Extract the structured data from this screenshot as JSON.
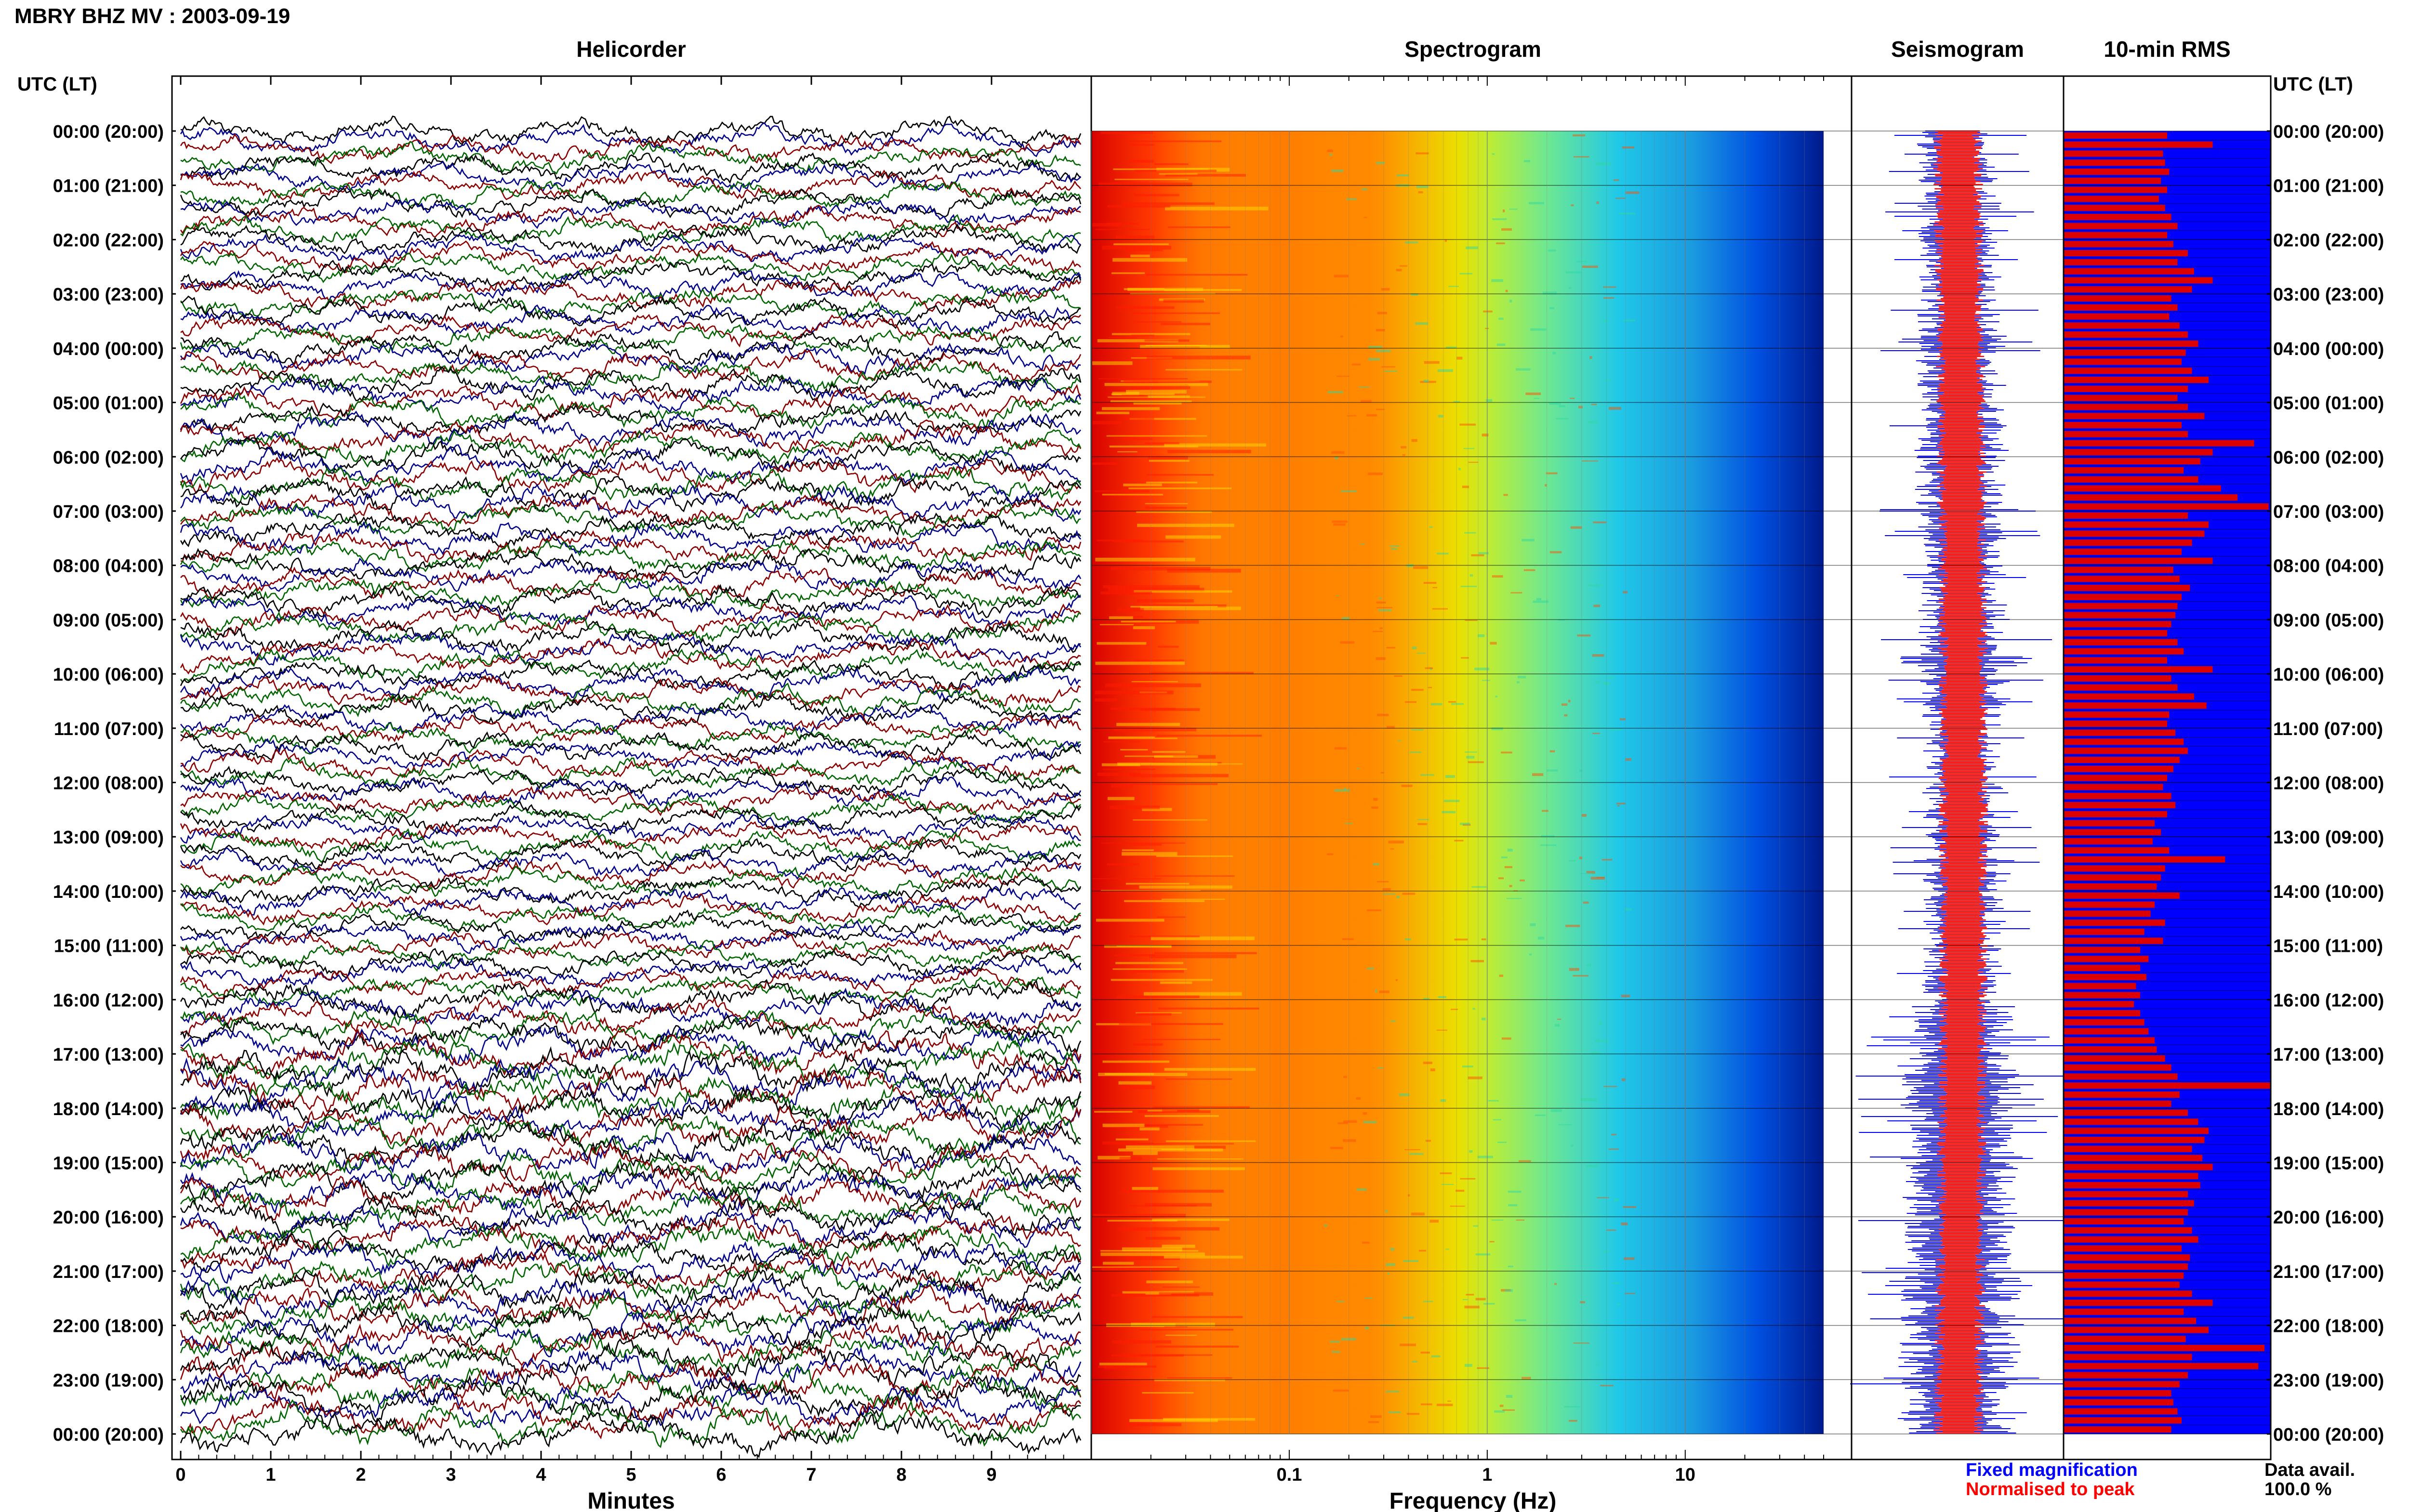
{
  "title": "MBRY BHZ MV : 2003-09-19",
  "left_axis_label": "UTC (LT)",
  "right_axis_label": "UTC (LT)",
  "panels": {
    "helicorder": "Helicorder",
    "spectrogram": "Spectrogram",
    "seismogram": "Seismogram",
    "rms": "10-min RMS"
  },
  "time_labels": [
    "00:00 (20:00)",
    "01:00 (21:00)",
    "02:00 (22:00)",
    "03:00 (23:00)",
    "04:00 (00:00)",
    "05:00 (01:00)",
    "06:00 (02:00)",
    "07:00 (03:00)",
    "08:00 (04:00)",
    "09:00 (05:00)",
    "10:00 (06:00)",
    "11:00 (07:00)",
    "12:00 (08:00)",
    "13:00 (09:00)",
    "14:00 (10:00)",
    "15:00 (11:00)",
    "16:00 (12:00)",
    "17:00 (13:00)",
    "18:00 (14:00)",
    "19:00 (15:00)",
    "20:00 (16:00)",
    "21:00 (17:00)",
    "22:00 (18:00)",
    "23:00 (19:00)",
    "00:00 (20:00)"
  ],
  "legend": {
    "fixed": "Fixed magnification",
    "normalised": "Normalised to peak",
    "avail_label": "Data avail.",
    "avail_value": "100.0 %"
  },
  "colors": {
    "helicorder_traces": [
      "#000000",
      "#00008b",
      "#8b0000",
      "#006400"
    ],
    "fixed_magnification": "#0000ff",
    "normalised_to_peak": "#ff0000",
    "rms_background": "#0000ff",
    "rms_bars": "#dd0000"
  },
  "chart_data": [
    {
      "type": "line",
      "name": "Helicorder",
      "xlabel": "Minutes",
      "xlim": [
        0,
        10
      ],
      "xticks": [
        "0",
        "1",
        "2",
        "3",
        "4",
        "5",
        "6",
        "7",
        "8",
        "9"
      ],
      "ylim_hours": [
        0,
        24
      ],
      "traces_per_hour": 6,
      "relative_amplitude_by_hour": [
        1.0,
        1.0,
        1.0,
        1.05,
        1.1,
        1.15,
        1.2,
        1.15,
        1.1,
        1.1,
        1.05,
        1.0,
        1.0,
        1.0,
        1.0,
        1.0,
        1.3,
        1.6,
        1.5,
        1.45,
        1.4,
        1.45,
        1.5,
        1.5
      ]
    },
    {
      "type": "heatmap",
      "name": "Spectrogram",
      "xlabel": "Frequency (Hz)",
      "xscale": "log",
      "xlim": [
        0.01,
        50
      ],
      "xticks": [
        "0.1",
        "1",
        "10"
      ],
      "ylim_hours": [
        0,
        24
      ],
      "colormap": "jet"
    },
    {
      "type": "line",
      "name": "Seismogram",
      "ylim_hours": [
        0,
        24
      ],
      "series": [
        {
          "name": "Fixed magnification",
          "color": "#0000ff"
        },
        {
          "name": "Normalised to peak",
          "color": "#ff0000"
        }
      ]
    },
    {
      "type": "bar",
      "name": "10-min RMS",
      "orientation": "horizontal",
      "ylim_hours": [
        0,
        24
      ],
      "values": [
        0.5,
        0.72,
        0.48,
        0.49,
        0.51,
        0.47,
        0.5,
        0.46,
        0.49,
        0.52,
        0.55,
        0.5,
        0.53,
        0.6,
        0.55,
        0.63,
        0.72,
        0.62,
        0.52,
        0.55,
        0.51,
        0.56,
        0.6,
        0.65,
        0.59,
        0.57,
        0.62,
        0.7,
        0.6,
        0.55,
        0.6,
        0.68,
        0.57,
        0.6,
        0.92,
        0.72,
        0.66,
        0.58,
        0.65,
        0.76,
        0.84,
        0.99,
        0.6,
        0.7,
        0.68,
        0.62,
        0.57,
        0.72,
        0.53,
        0.56,
        0.61,
        0.57,
        0.55,
        0.54,
        0.52,
        0.5,
        0.55,
        0.58,
        0.5,
        0.72,
        0.52,
        0.55,
        0.63,
        0.69,
        0.51,
        0.5,
        0.54,
        0.58,
        0.6,
        0.56,
        0.53,
        0.5,
        0.48,
        0.52,
        0.54,
        0.5,
        0.44,
        0.47,
        0.43,
        0.51,
        0.78,
        0.49,
        0.47,
        0.45,
        0.56,
        0.44,
        0.42,
        0.49,
        0.39,
        0.48,
        0.37,
        0.41,
        0.37,
        0.4,
        0.35,
        0.37,
        0.34,
        0.37,
        0.39,
        0.41,
        0.44,
        0.45,
        0.49,
        0.52,
        0.55,
        1.0,
        0.56,
        0.52,
        0.6,
        0.65,
        0.7,
        0.68,
        0.62,
        0.67,
        0.72,
        0.65,
        0.66,
        0.6,
        0.63,
        0.6,
        0.58,
        0.62,
        0.65,
        0.57,
        0.61,
        0.6,
        0.58,
        0.56,
        0.62,
        0.72,
        0.58,
        0.64,
        0.7,
        0.59,
        0.97,
        0.62,
        0.94,
        0.6,
        0.56,
        0.52,
        0.53,
        0.55,
        0.57,
        0.52
      ],
      "background_color": "#0000ff",
      "bar_color": "#dd0000"
    }
  ]
}
